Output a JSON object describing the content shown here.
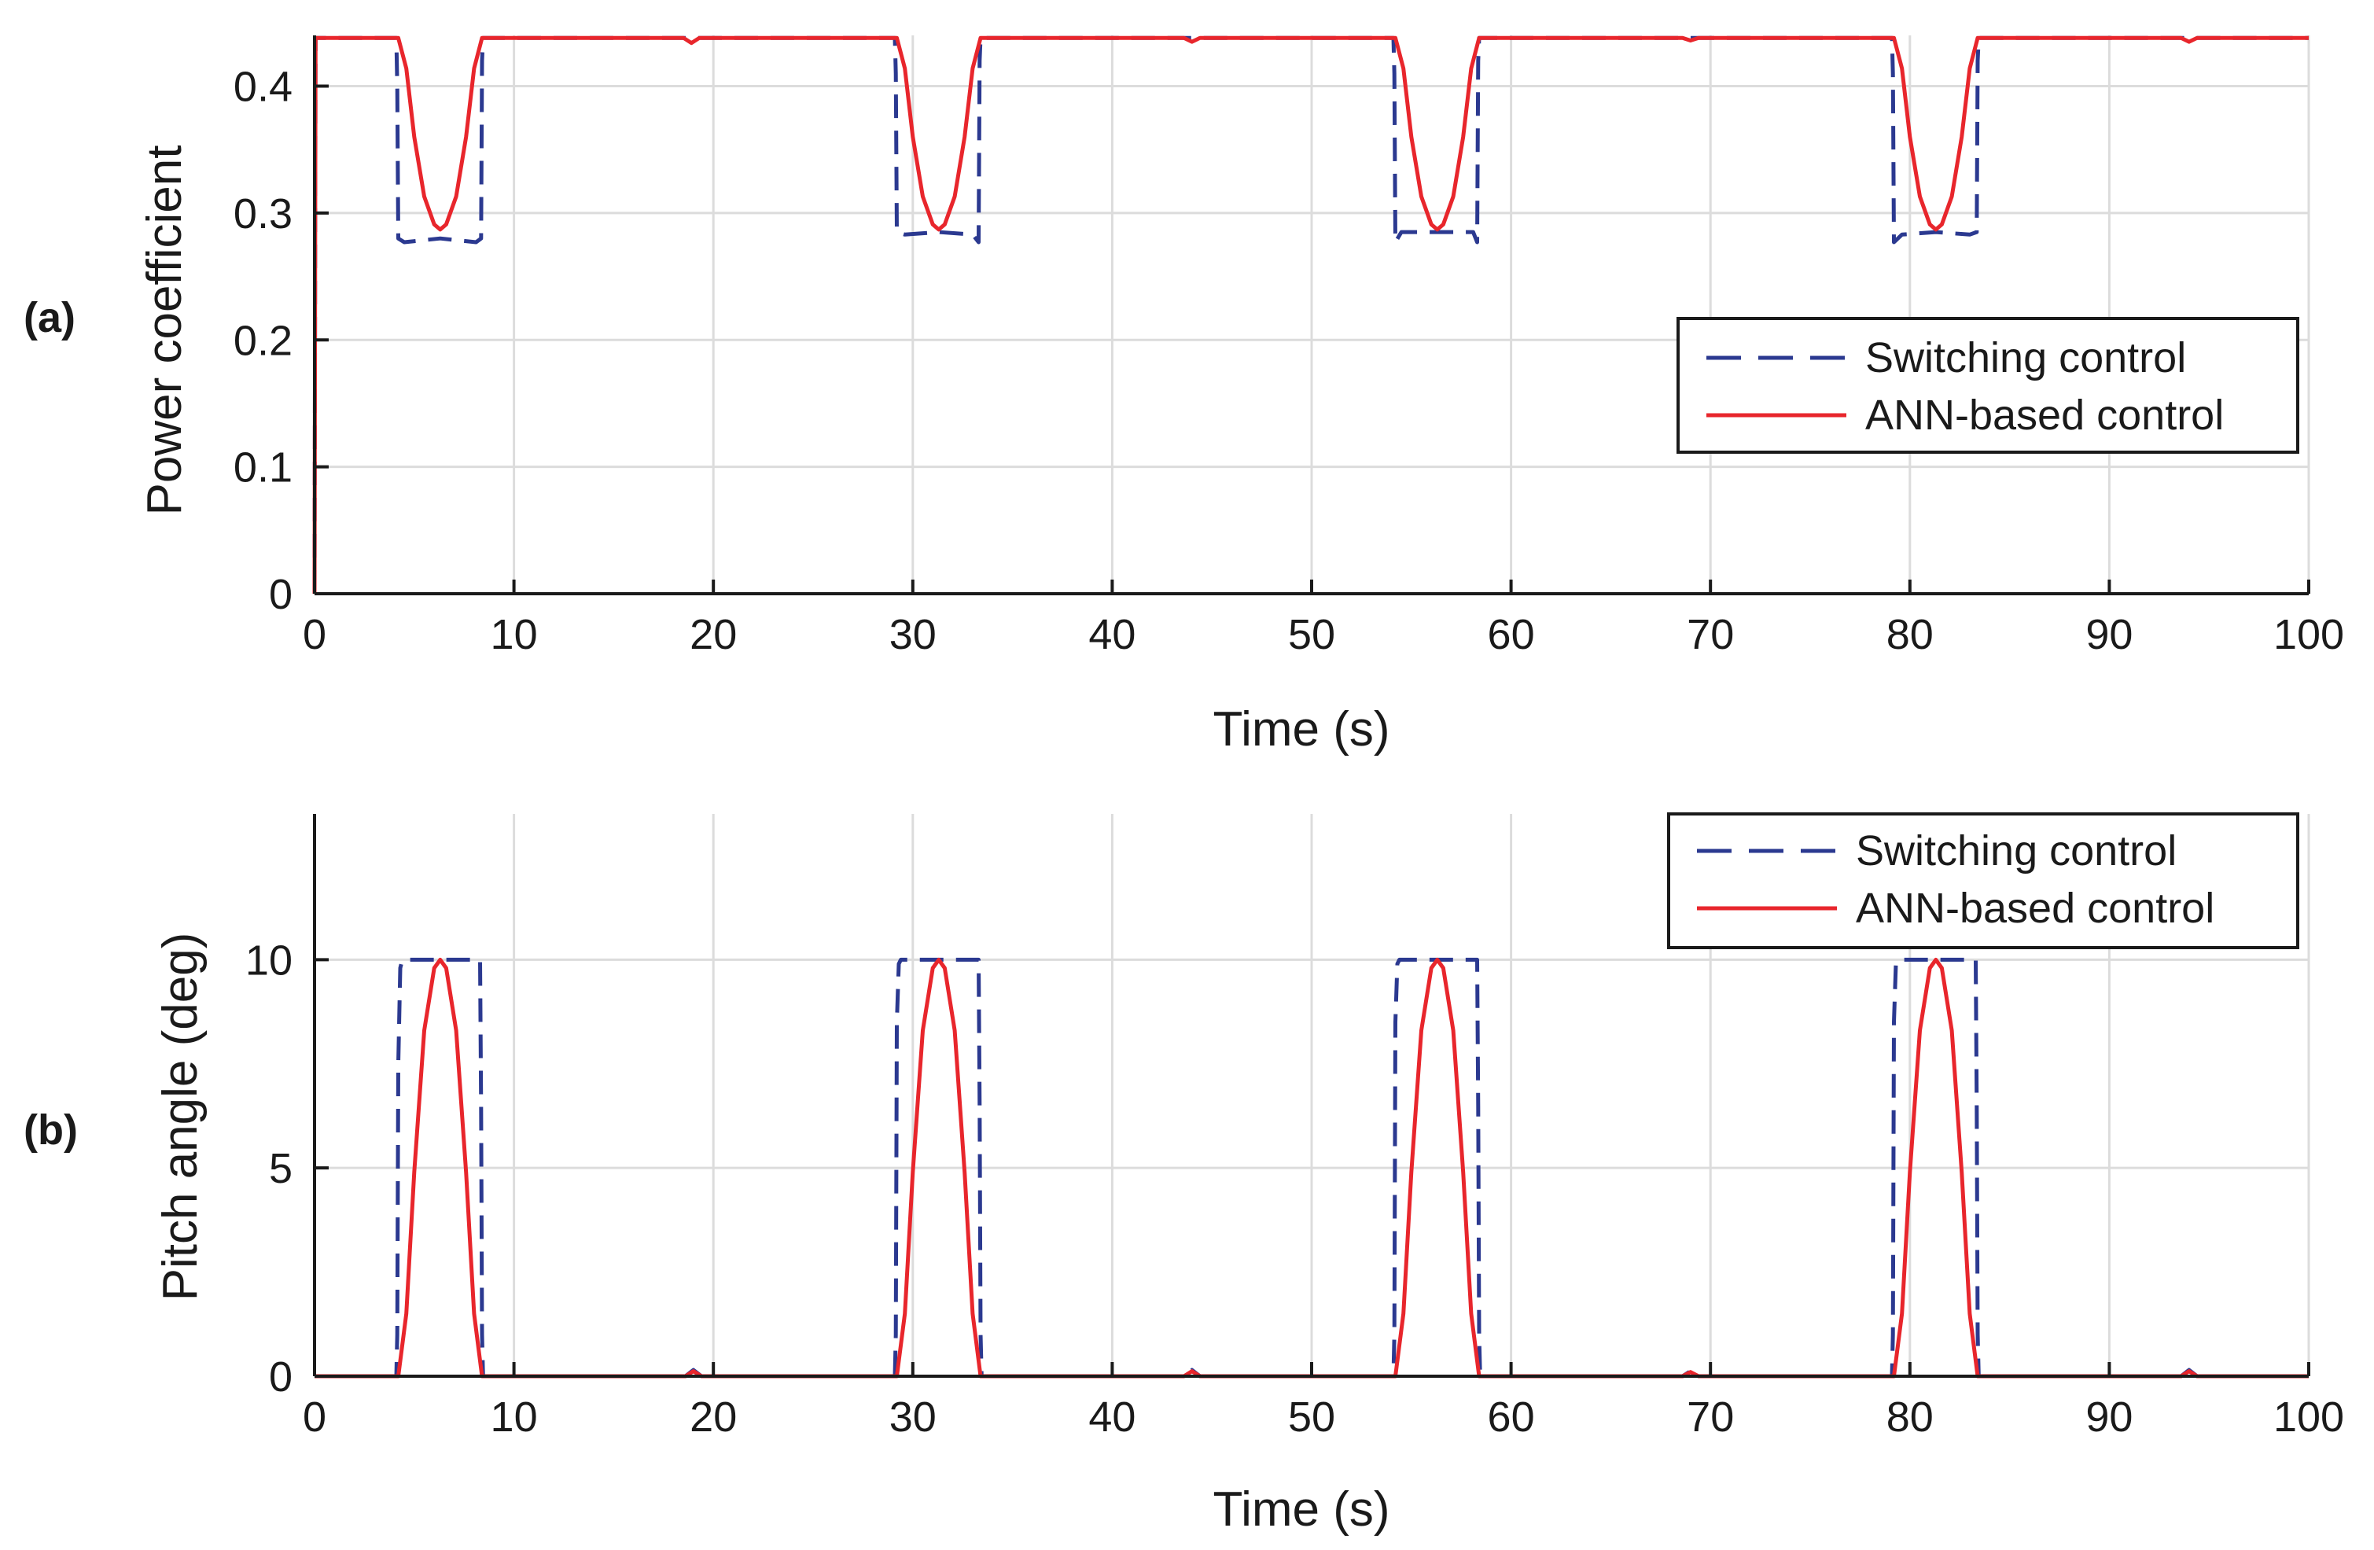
{
  "chart_data": [
    {
      "panel_label": "(a)",
      "type": "line",
      "xlabel": "Time (s)",
      "ylabel": "Power coefficient",
      "xlim": [
        0,
        100
      ],
      "ylim": [
        0,
        0.44
      ],
      "xticks": [
        0,
        10,
        20,
        30,
        40,
        50,
        60,
        70,
        80,
        90,
        100
      ],
      "yticks": [
        0,
        0.1,
        0.2,
        0.3,
        0.4
      ],
      "xtick_labels": [
        "0",
        "10",
        "20",
        "30",
        "40",
        "50",
        "60",
        "70",
        "80",
        "90",
        "100"
      ],
      "ytick_labels": [
        "0",
        "0.1",
        "0.2",
        "0.3",
        "0.4"
      ],
      "grid": true,
      "legend_position": "right",
      "legend": [
        "Switching control",
        "ANN-based control"
      ],
      "series": [
        {
          "name": "Switching control",
          "color": "#2b3990",
          "dash": "dashed",
          "points": [
            [
              0,
              0
            ],
            [
              0.05,
              0.438
            ],
            [
              4.1,
              0.438
            ],
            [
              4.15,
              0.4
            ],
            [
              4.2,
              0.28
            ],
            [
              4.5,
              0.277
            ],
            [
              6.3,
              0.28
            ],
            [
              8.1,
              0.277
            ],
            [
              8.35,
              0.28
            ],
            [
              8.4,
              0.42
            ],
            [
              8.45,
              0.438
            ],
            [
              29.1,
              0.438
            ],
            [
              29.15,
              0.41
            ],
            [
              29.2,
              0.285
            ],
            [
              29.6,
              0.283
            ],
            [
              31.3,
              0.285
            ],
            [
              33.0,
              0.283
            ],
            [
              33.3,
              0.277
            ],
            [
              33.35,
              0.42
            ],
            [
              33.4,
              0.438
            ],
            [
              54.1,
              0.438
            ],
            [
              54.15,
              0.41
            ],
            [
              54.2,
              0.277
            ],
            [
              54.5,
              0.285
            ],
            [
              58.1,
              0.285
            ],
            [
              58.3,
              0.277
            ],
            [
              58.35,
              0.42
            ],
            [
              58.4,
              0.438
            ],
            [
              79.1,
              0.438
            ],
            [
              79.15,
              0.41
            ],
            [
              79.2,
              0.277
            ],
            [
              79.6,
              0.283
            ],
            [
              81.3,
              0.285
            ],
            [
              83.0,
              0.283
            ],
            [
              83.35,
              0.285
            ],
            [
              83.4,
              0.42
            ],
            [
              83.45,
              0.438
            ],
            [
              100,
              0.438
            ]
          ]
        },
        {
          "name": "ANN-based control",
          "color": "#e8262c",
          "dash": "solid",
          "points": [
            [
              0,
              0
            ],
            [
              0.05,
              0.438
            ],
            [
              4.2,
              0.438
            ],
            [
              4.6,
              0.414
            ],
            [
              5.0,
              0.36
            ],
            [
              5.5,
              0.313
            ],
            [
              6.0,
              0.291
            ],
            [
              6.3,
              0.287
            ],
            [
              6.6,
              0.291
            ],
            [
              7.1,
              0.313
            ],
            [
              7.6,
              0.36
            ],
            [
              8.0,
              0.414
            ],
            [
              8.4,
              0.438
            ],
            [
              18.5,
              0.438
            ],
            [
              18.9,
              0.434
            ],
            [
              19.3,
              0.438
            ],
            [
              29.2,
              0.438
            ],
            [
              29.6,
              0.414
            ],
            [
              30.0,
              0.36
            ],
            [
              30.5,
              0.313
            ],
            [
              31.0,
              0.291
            ],
            [
              31.3,
              0.287
            ],
            [
              31.6,
              0.291
            ],
            [
              32.1,
              0.313
            ],
            [
              32.6,
              0.36
            ],
            [
              33.0,
              0.414
            ],
            [
              33.4,
              0.438
            ],
            [
              43.6,
              0.438
            ],
            [
              44.0,
              0.435
            ],
            [
              44.4,
              0.438
            ],
            [
              54.2,
              0.438
            ],
            [
              54.6,
              0.414
            ],
            [
              55.0,
              0.36
            ],
            [
              55.5,
              0.313
            ],
            [
              56.0,
              0.291
            ],
            [
              56.3,
              0.287
            ],
            [
              56.6,
              0.291
            ],
            [
              57.1,
              0.313
            ],
            [
              57.6,
              0.36
            ],
            [
              58.0,
              0.414
            ],
            [
              58.4,
              0.438
            ],
            [
              68.6,
              0.438
            ],
            [
              69.0,
              0.436
            ],
            [
              69.4,
              0.438
            ],
            [
              79.2,
              0.438
            ],
            [
              79.6,
              0.414
            ],
            [
              80.0,
              0.36
            ],
            [
              80.5,
              0.313
            ],
            [
              81.0,
              0.291
            ],
            [
              81.3,
              0.287
            ],
            [
              81.6,
              0.291
            ],
            [
              82.1,
              0.313
            ],
            [
              82.6,
              0.36
            ],
            [
              83.0,
              0.414
            ],
            [
              83.4,
              0.438
            ],
            [
              93.6,
              0.438
            ],
            [
              94.0,
              0.435
            ],
            [
              94.4,
              0.438
            ],
            [
              100,
              0.438
            ]
          ]
        }
      ]
    },
    {
      "panel_label": "(b)",
      "type": "line",
      "xlabel": "Time (s)",
      "ylabel": "Pitch angle (deg)",
      "xlim": [
        0,
        100
      ],
      "ylim": [
        0,
        13.5
      ],
      "xticks": [
        0,
        10,
        20,
        30,
        40,
        50,
        60,
        70,
        80,
        90,
        100
      ],
      "yticks": [
        0,
        5,
        10
      ],
      "xtick_labels": [
        "0",
        "10",
        "20",
        "30",
        "40",
        "50",
        "60",
        "70",
        "80",
        "90",
        "100"
      ],
      "ytick_labels": [
        "0",
        "5",
        "10"
      ],
      "grid": true,
      "legend_position": "top-right",
      "legend": [
        "Switching control",
        "ANN-based control"
      ],
      "series": [
        {
          "name": "Switching control",
          "color": "#2b3990",
          "dash": "dashed",
          "points": [
            [
              0,
              0
            ],
            [
              4.1,
              0
            ],
            [
              4.15,
              1.0
            ],
            [
              4.2,
              7.5
            ],
            [
              4.3,
              9.8
            ],
            [
              4.4,
              10
            ],
            [
              8.3,
              10
            ],
            [
              8.35,
              6.5
            ],
            [
              8.4,
              1.0
            ],
            [
              8.45,
              0
            ],
            [
              18.6,
              0
            ],
            [
              19.0,
              0.15
            ],
            [
              19.4,
              0
            ],
            [
              29.1,
              0
            ],
            [
              29.15,
              1.0
            ],
            [
              29.2,
              8.5
            ],
            [
              29.3,
              9.9
            ],
            [
              29.4,
              10
            ],
            [
              33.3,
              10
            ],
            [
              33.35,
              6.5
            ],
            [
              33.4,
              1.0
            ],
            [
              33.45,
              0
            ],
            [
              43.6,
              0
            ],
            [
              44.0,
              0.15
            ],
            [
              44.4,
              0
            ],
            [
              54.1,
              0
            ],
            [
              54.15,
              1.0
            ],
            [
              54.2,
              8.5
            ],
            [
              54.3,
              9.9
            ],
            [
              54.4,
              10
            ],
            [
              58.3,
              10
            ],
            [
              58.35,
              6.5
            ],
            [
              58.4,
              1.0
            ],
            [
              58.45,
              0
            ],
            [
              68.6,
              0
            ],
            [
              69.0,
              0.12
            ],
            [
              69.4,
              0
            ],
            [
              79.1,
              0
            ],
            [
              79.15,
              1.0
            ],
            [
              79.2,
              8.5
            ],
            [
              79.3,
              9.9
            ],
            [
              79.4,
              10
            ],
            [
              83.3,
              10
            ],
            [
              83.35,
              6.5
            ],
            [
              83.4,
              1.0
            ],
            [
              83.45,
              0
            ],
            [
              93.6,
              0
            ],
            [
              94.0,
              0.15
            ],
            [
              94.4,
              0
            ],
            [
              100,
              0
            ]
          ]
        },
        {
          "name": "ANN-based control",
          "color": "#e8262c",
          "dash": "solid",
          "points": [
            [
              0,
              0
            ],
            [
              4.2,
              0
            ],
            [
              4.6,
              1.5
            ],
            [
              5.0,
              4.9
            ],
            [
              5.5,
              8.3
            ],
            [
              6.0,
              9.8
            ],
            [
              6.3,
              10
            ],
            [
              6.6,
              9.8
            ],
            [
              7.1,
              8.3
            ],
            [
              7.6,
              4.9
            ],
            [
              8.0,
              1.5
            ],
            [
              8.4,
              0
            ],
            [
              18.6,
              0
            ],
            [
              19.0,
              0.12
            ],
            [
              19.4,
              0
            ],
            [
              29.2,
              0
            ],
            [
              29.6,
              1.5
            ],
            [
              30.0,
              4.9
            ],
            [
              30.5,
              8.3
            ],
            [
              31.0,
              9.8
            ],
            [
              31.3,
              10
            ],
            [
              31.6,
              9.8
            ],
            [
              32.1,
              8.3
            ],
            [
              32.6,
              4.9
            ],
            [
              33.0,
              1.5
            ],
            [
              33.4,
              0
            ],
            [
              43.6,
              0
            ],
            [
              44.0,
              0.12
            ],
            [
              44.4,
              0
            ],
            [
              54.2,
              0
            ],
            [
              54.6,
              1.5
            ],
            [
              55.0,
              4.9
            ],
            [
              55.5,
              8.3
            ],
            [
              56.0,
              9.8
            ],
            [
              56.3,
              10
            ],
            [
              56.6,
              9.8
            ],
            [
              57.1,
              8.3
            ],
            [
              57.6,
              4.9
            ],
            [
              58.0,
              1.5
            ],
            [
              58.4,
              0
            ],
            [
              68.6,
              0
            ],
            [
              69.0,
              0.1
            ],
            [
              69.4,
              0
            ],
            [
              79.2,
              0
            ],
            [
              79.6,
              1.5
            ],
            [
              80.0,
              4.9
            ],
            [
              80.5,
              8.3
            ],
            [
              81.0,
              9.8
            ],
            [
              81.3,
              10
            ],
            [
              81.6,
              9.8
            ],
            [
              82.1,
              8.3
            ],
            [
              82.6,
              4.9
            ],
            [
              83.0,
              1.5
            ],
            [
              83.4,
              0
            ],
            [
              93.6,
              0
            ],
            [
              94.0,
              0.12
            ],
            [
              94.4,
              0
            ],
            [
              100,
              0
            ]
          ]
        }
      ]
    }
  ]
}
